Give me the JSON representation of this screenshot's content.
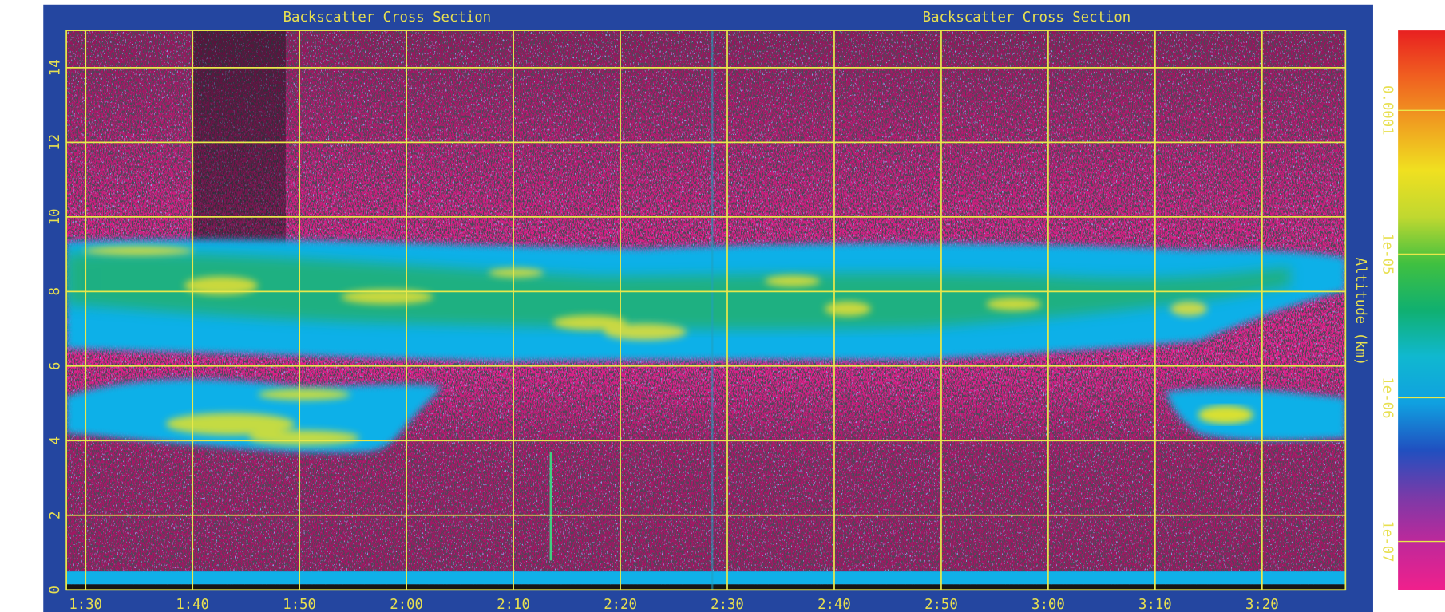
{
  "chart_data": {
    "type": "heatmap",
    "titles": [
      "Backscatter Cross Section",
      "Backscatter Cross Section"
    ],
    "ylabel": "Altitude (km)",
    "xlim": [
      88.2,
      207.8
    ],
    "xticks": [
      {
        "value": 90,
        "label": "1:30"
      },
      {
        "value": 100,
        "label": "1:40"
      },
      {
        "value": 110,
        "label": "1:50"
      },
      {
        "value": 120,
        "label": "2:00"
      },
      {
        "value": 130,
        "label": "2:10"
      },
      {
        "value": 140,
        "label": "2:20"
      },
      {
        "value": 150,
        "label": "2:30"
      },
      {
        "value": 160,
        "label": "2:40"
      },
      {
        "value": 170,
        "label": "2:50"
      },
      {
        "value": 180,
        "label": "3:00"
      },
      {
        "value": 190,
        "label": "3:10"
      },
      {
        "value": 200,
        "label": "3:20"
      }
    ],
    "ylim": [
      0,
      15
    ],
    "yticks": [
      0,
      2,
      4,
      6,
      8,
      10,
      12,
      14
    ],
    "grid": true,
    "grid_color": "#e8e84a",
    "colorbar": {
      "scale": "log",
      "lim": [
        4.6e-08,
        0.00036
      ],
      "ticks": [
        {
          "value": 1e-07,
          "label": "1e-07"
        },
        {
          "value": 1e-06,
          "label": "1e-06"
        },
        {
          "value": 1e-05,
          "label": "1e-05"
        },
        0.0001
      ],
      "colors": [
        "#f0208c",
        "#c0289a",
        "#7a3aa8",
        "#2050c0",
        "#10a0e0",
        "#10b8d0",
        "#10b070",
        "#40c040",
        "#c0d830",
        "#f0e020",
        "#f0a020",
        "#f06020",
        "#e82020"
      ]
    }
  }
}
